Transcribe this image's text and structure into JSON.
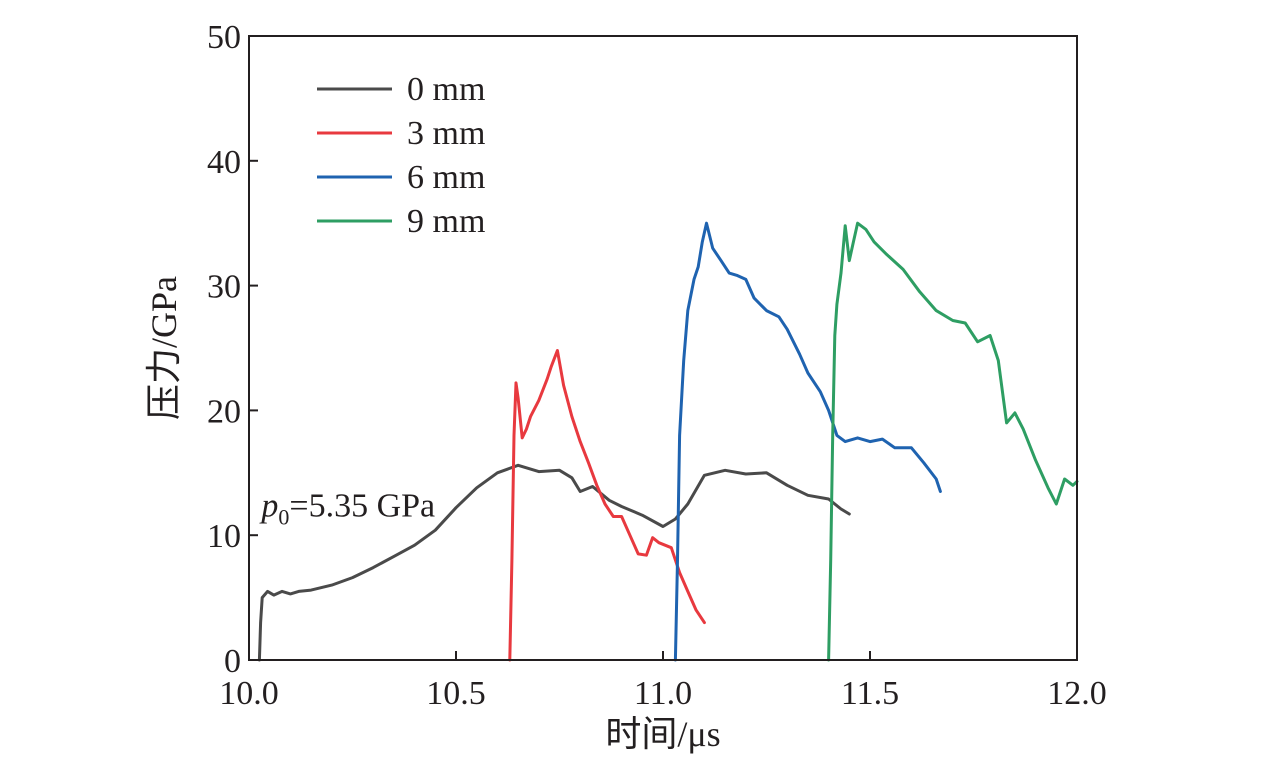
{
  "chart_data": {
    "type": "line",
    "xlabel": "时间/μs",
    "ylabel": "压力/GPa",
    "xlim": [
      10.0,
      12.0
    ],
    "ylim": [
      0,
      50
    ],
    "xticks": [
      "10.0",
      "10.5",
      "11.0",
      "11.5",
      "12.0"
    ],
    "yticks": [
      "0",
      "10",
      "20",
      "30",
      "40",
      "50"
    ],
    "grid": false,
    "legend": "top-left",
    "annotation": {
      "symbol": "p",
      "subscript": "0",
      "text": "=5.35 GPa",
      "x": 10.03,
      "y": 11.5
    },
    "series": [
      {
        "name": "0 mm",
        "color": "#4a4a4a",
        "points": [
          [
            10.025,
            0
          ],
          [
            10.028,
            3
          ],
          [
            10.032,
            5.0
          ],
          [
            10.045,
            5.5
          ],
          [
            10.06,
            5.2
          ],
          [
            10.08,
            5.5
          ],
          [
            10.1,
            5.3
          ],
          [
            10.12,
            5.5
          ],
          [
            10.15,
            5.6
          ],
          [
            10.2,
            6.0
          ],
          [
            10.25,
            6.6
          ],
          [
            10.3,
            7.4
          ],
          [
            10.35,
            8.3
          ],
          [
            10.4,
            9.2
          ],
          [
            10.45,
            10.4
          ],
          [
            10.5,
            12.2
          ],
          [
            10.55,
            13.8
          ],
          [
            10.6,
            15.0
          ],
          [
            10.65,
            15.6
          ],
          [
            10.7,
            15.1
          ],
          [
            10.75,
            15.2
          ],
          [
            10.78,
            14.6
          ],
          [
            10.8,
            13.5
          ],
          [
            10.83,
            13.9
          ],
          [
            10.87,
            12.8
          ],
          [
            10.9,
            12.3
          ],
          [
            10.95,
            11.6
          ],
          [
            11.0,
            10.7
          ],
          [
            11.03,
            11.3
          ],
          [
            11.06,
            12.5
          ],
          [
            11.1,
            14.8
          ],
          [
            11.15,
            15.2
          ],
          [
            11.2,
            14.9
          ],
          [
            11.25,
            15.0
          ],
          [
            11.3,
            14.0
          ],
          [
            11.35,
            13.2
          ],
          [
            11.4,
            12.9
          ],
          [
            11.43,
            12.1
          ],
          [
            11.45,
            11.7
          ]
        ]
      },
      {
        "name": "3 mm",
        "color": "#e8393f",
        "points": [
          [
            10.63,
            0
          ],
          [
            10.635,
            8
          ],
          [
            10.64,
            18
          ],
          [
            10.645,
            22.2
          ],
          [
            10.65,
            21.0
          ],
          [
            10.66,
            17.8
          ],
          [
            10.67,
            18.5
          ],
          [
            10.68,
            19.5
          ],
          [
            10.7,
            20.8
          ],
          [
            10.72,
            22.5
          ],
          [
            10.73,
            23.5
          ],
          [
            10.745,
            24.8
          ],
          [
            10.76,
            22.0
          ],
          [
            10.78,
            19.5
          ],
          [
            10.8,
            17.5
          ],
          [
            10.82,
            15.8
          ],
          [
            10.84,
            14.0
          ],
          [
            10.86,
            12.5
          ],
          [
            10.88,
            11.5
          ],
          [
            10.9,
            11.5
          ],
          [
            10.92,
            10.0
          ],
          [
            10.94,
            8.5
          ],
          [
            10.96,
            8.4
          ],
          [
            10.975,
            9.8
          ],
          [
            10.99,
            9.4
          ],
          [
            11.02,
            9.0
          ],
          [
            11.04,
            7.0
          ],
          [
            11.06,
            5.5
          ],
          [
            11.08,
            4.0
          ],
          [
            11.1,
            3.0
          ]
        ]
      },
      {
        "name": "6 mm",
        "color": "#1f63b0",
        "points": [
          [
            11.03,
            0
          ],
          [
            11.035,
            8
          ],
          [
            11.04,
            18
          ],
          [
            11.05,
            24
          ],
          [
            11.06,
            28
          ],
          [
            11.075,
            30.5
          ],
          [
            11.085,
            31.5
          ],
          [
            11.095,
            33.5
          ],
          [
            11.105,
            35.0
          ],
          [
            11.12,
            33.0
          ],
          [
            11.14,
            32.0
          ],
          [
            11.16,
            31.0
          ],
          [
            11.18,
            30.8
          ],
          [
            11.2,
            30.5
          ],
          [
            11.22,
            29.0
          ],
          [
            11.25,
            28.0
          ],
          [
            11.28,
            27.5
          ],
          [
            11.3,
            26.5
          ],
          [
            11.33,
            24.5
          ],
          [
            11.35,
            23.0
          ],
          [
            11.38,
            21.5
          ],
          [
            11.4,
            20.0
          ],
          [
            11.42,
            18.0
          ],
          [
            11.44,
            17.5
          ],
          [
            11.47,
            17.8
          ],
          [
            11.5,
            17.5
          ],
          [
            11.53,
            17.7
          ],
          [
            11.56,
            17.0
          ],
          [
            11.6,
            17.0
          ],
          [
            11.63,
            15.8
          ],
          [
            11.66,
            14.5
          ],
          [
            11.67,
            13.5
          ]
        ]
      },
      {
        "name": "9 mm",
        "color": "#2e9e63",
        "points": [
          [
            11.4,
            0
          ],
          [
            11.405,
            8
          ],
          [
            11.41,
            18
          ],
          [
            11.415,
            26
          ],
          [
            11.42,
            28.5
          ],
          [
            11.43,
            31.0
          ],
          [
            11.44,
            34.8
          ],
          [
            11.45,
            32.0
          ],
          [
            11.46,
            33.5
          ],
          [
            11.47,
            35.0
          ],
          [
            11.49,
            34.5
          ],
          [
            11.51,
            33.5
          ],
          [
            11.54,
            32.5
          ],
          [
            11.58,
            31.3
          ],
          [
            11.62,
            29.5
          ],
          [
            11.66,
            28.0
          ],
          [
            11.7,
            27.2
          ],
          [
            11.73,
            27.0
          ],
          [
            11.76,
            25.5
          ],
          [
            11.79,
            26.0
          ],
          [
            11.81,
            24.0
          ],
          [
            11.83,
            19.0
          ],
          [
            11.85,
            19.8
          ],
          [
            11.87,
            18.5
          ],
          [
            11.9,
            16.0
          ],
          [
            11.93,
            13.8
          ],
          [
            11.95,
            12.5
          ],
          [
            11.97,
            14.5
          ],
          [
            11.99,
            14.0
          ],
          [
            12.0,
            14.3
          ]
        ]
      }
    ]
  }
}
